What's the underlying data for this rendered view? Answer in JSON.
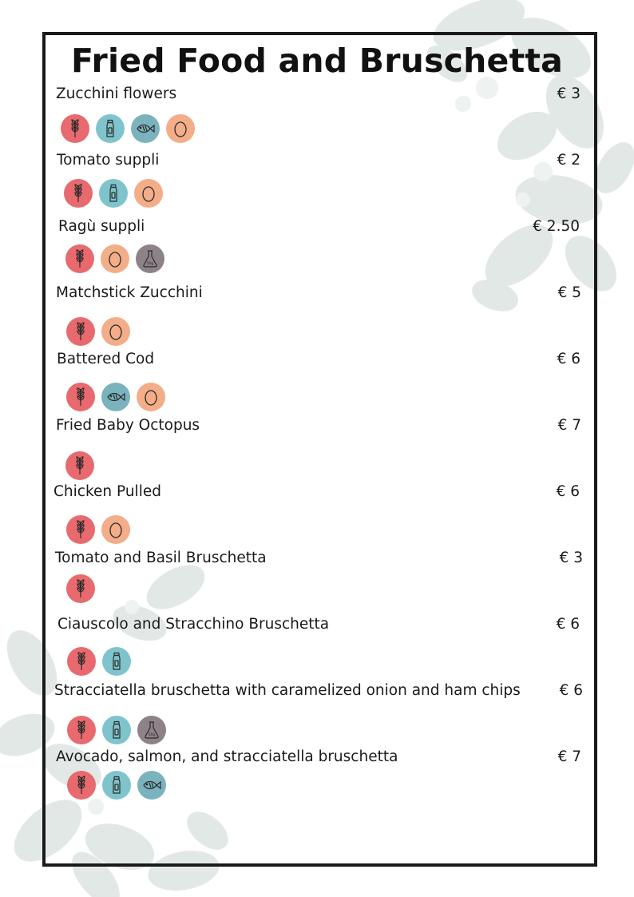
{
  "title": "Fried Food and Bruschetta",
  "allergen_icons": {
    "gluten": "wheat-icon",
    "dairy": "milk-bottle-icon",
    "fish": "fish-icon",
    "egg": "egg-icon",
    "sulphites": "flask-icon"
  },
  "colors": {
    "gluten": "#e86a6e",
    "dairy": "#7fc4cc",
    "fish": "#7ab3bd",
    "egg": "#f3ad88",
    "sulphites": "#8e8289",
    "frame": "#1a1a1a"
  },
  "sulphites_label": "50g",
  "items": [
    {
      "name": "Zucchini flowers",
      "price": "€ 3",
      "allergens": [
        "gluten",
        "dairy",
        "fish",
        "egg"
      ]
    },
    {
      "name": "Tomato suppli",
      "price": "€ 2",
      "allergens": [
        "gluten",
        "dairy",
        "egg"
      ]
    },
    {
      "name": "Ragù suppli",
      "price": "€ 2.50",
      "allergens": [
        "gluten",
        "egg",
        "sulphites"
      ]
    },
    {
      "name": "Matchstick Zucchini",
      "price": "€ 5",
      "allergens": [
        "gluten",
        "egg"
      ]
    },
    {
      "name": "Battered Cod",
      "price": "€ 6",
      "allergens": [
        "gluten",
        "fish",
        "egg"
      ]
    },
    {
      "name": "Fried Baby Octopus",
      "price": "€ 7",
      "allergens": [
        "gluten"
      ]
    },
    {
      "name": "Chicken Pulled",
      "price": "€ 6",
      "allergens": [
        "gluten",
        "egg"
      ]
    },
    {
      "name": "Tomato and Basil Bruschetta",
      "price": "€ 3",
      "allergens": [
        "gluten"
      ]
    },
    {
      "name": "Ciauscolo and Stracchino Bruschetta",
      "price": "€ 6",
      "allergens": [
        "gluten",
        "dairy"
      ]
    },
    {
      "name": "Stracciatella bruschetta with caramelized onion and ham chips",
      "price": "€ 6",
      "allergens": [
        "gluten",
        "dairy",
        "sulphites"
      ]
    },
    {
      "name": "Avocado, salmon, and stracciatella bruschetta",
      "price": "€ 7",
      "allergens": [
        "gluten",
        "dairy",
        "fish"
      ]
    }
  ]
}
